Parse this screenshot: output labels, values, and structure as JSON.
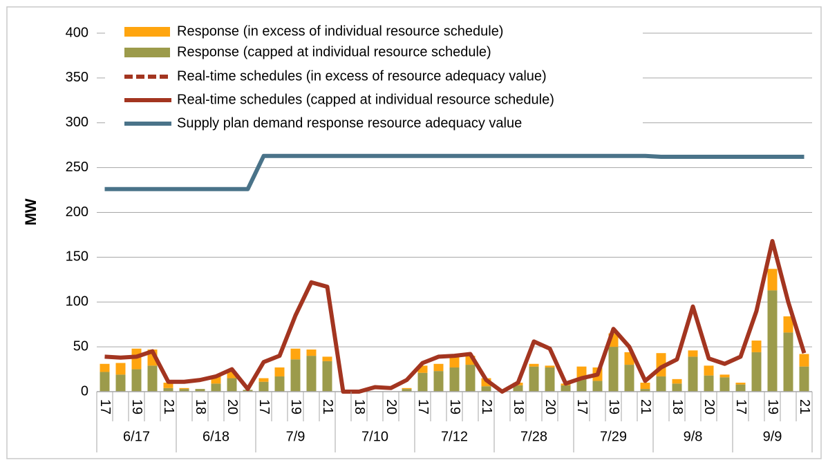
{
  "chart_data": {
    "type": "combo",
    "y_axis_label": "MW",
    "ylim": [
      0,
      400
    ],
    "yticks": [
      0,
      50,
      100,
      150,
      200,
      250,
      300,
      350,
      400
    ],
    "grid": true,
    "legend": "top-left",
    "categories": [
      "17",
      null,
      "19",
      null,
      "21",
      null,
      "18",
      null,
      "20",
      null,
      "17",
      null,
      "19",
      null,
      "21",
      null,
      "18",
      null,
      "20",
      null,
      "17",
      null,
      "19",
      null,
      "21",
      null,
      "18",
      null,
      "20",
      null,
      "17",
      null,
      "19",
      null,
      "21",
      null,
      "18",
      null,
      "20",
      null,
      "17",
      null,
      "19",
      null,
      "21"
    ],
    "groups": [
      "6/17",
      "6/18",
      "7/9",
      "7/10",
      "7/12",
      "7/28",
      "7/29",
      "9/8",
      "9/9"
    ],
    "series": [
      {
        "name": "Response (in excess of individual resource schedule)",
        "style": "bar",
        "color": "#ffa50f",
        "values": [
          9,
          13,
          23,
          18,
          6,
          1,
          0,
          8,
          7,
          0,
          4,
          10,
          12,
          7,
          5,
          0,
          0,
          0,
          0,
          1,
          8,
          8,
          13,
          10,
          9,
          0,
          3,
          3,
          2,
          2,
          14,
          15,
          15,
          14,
          7,
          26,
          5,
          7,
          11,
          3,
          2,
          13,
          24,
          18,
          14
        ]
      },
      {
        "name": "Response (capped at individual resource schedule)",
        "style": "bar",
        "color": "#9c9b4b",
        "values": [
          22,
          19,
          25,
          29,
          4,
          3,
          3,
          9,
          15,
          2,
          11,
          17,
          36,
          40,
          34,
          0,
          0,
          0,
          0,
          3,
          21,
          23,
          27,
          30,
          6,
          0,
          7,
          28,
          27,
          7,
          14,
          12,
          50,
          30,
          3,
          17,
          9,
          39,
          18,
          16,
          8,
          44,
          113,
          66,
          28
        ]
      },
      {
        "name": "Real-time schedules (in excess of resource adequacy value)",
        "style": "dashed",
        "color": "#a33520",
        "values": [
          null,
          null,
          null,
          null,
          null,
          null,
          null,
          null,
          null,
          null,
          null,
          null,
          null,
          null,
          null,
          null,
          null,
          null,
          null,
          null,
          null,
          null,
          null,
          null,
          null,
          null,
          null,
          null,
          null,
          null,
          null,
          null,
          null,
          null,
          null,
          null,
          null,
          null,
          null,
          null,
          null,
          null,
          null,
          null,
          null
        ]
      },
      {
        "name": "Real-time schedules (capped at individual resource schedule)",
        "style": "line",
        "color": "#a33520",
        "values": [
          39,
          38,
          39,
          45,
          11,
          11,
          13,
          17,
          25,
          3,
          33,
          40,
          85,
          122,
          117,
          0,
          0,
          5,
          4,
          13,
          32,
          39,
          40,
          42,
          13,
          0,
          10,
          56,
          48,
          9,
          15,
          19,
          70,
          50,
          12,
          27,
          36,
          95,
          37,
          31,
          39,
          90,
          168,
          100,
          43
        ]
      },
      {
        "name": "Supply plan demand response resource adequacy value",
        "style": "line",
        "color": "#4a7389",
        "values": [
          226,
          226,
          226,
          226,
          226,
          226,
          226,
          226,
          226,
          226,
          263,
          263,
          263,
          263,
          263,
          263,
          263,
          263,
          263,
          263,
          263,
          263,
          263,
          263,
          263,
          263,
          263,
          263,
          263,
          263,
          263,
          263,
          263,
          263,
          263,
          262,
          262,
          262,
          262,
          262,
          262,
          262,
          262,
          262,
          262
        ]
      }
    ]
  }
}
